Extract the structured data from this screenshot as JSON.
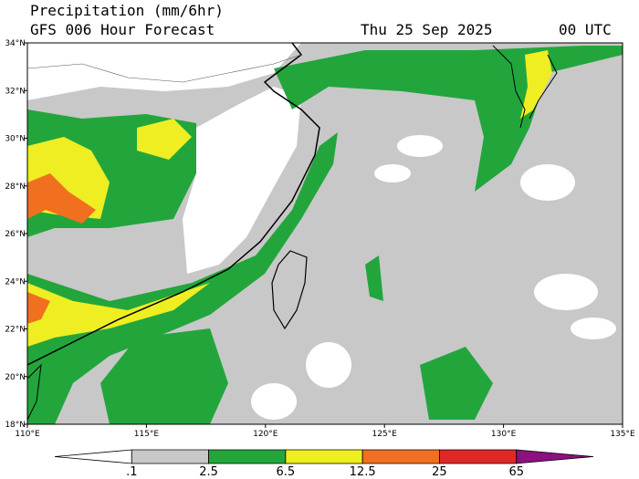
{
  "header": {
    "title": "Precipitation (mm/6hr)",
    "subtitle": "GFS 006 Hour Forecast",
    "date": "Thu 25 Sep 2025",
    "time": "00 UTC"
  },
  "map": {
    "lon_ticks": [
      "110°E",
      "115°E",
      "120°E",
      "125°E",
      "130°E",
      "135°E"
    ],
    "lat_ticks": [
      "18°N",
      "20°N",
      "22°N",
      "24°N",
      "26°N",
      "28°N",
      "30°N",
      "32°N",
      "34°N"
    ]
  },
  "colorbar": {
    "labels": [
      ".1",
      "2.5",
      "6.5",
      "12.5",
      "25",
      "65"
    ],
    "colors": [
      "#ffffff",
      "#c8c8c8",
      "#22a63c",
      "#eeee22",
      "#f07020",
      "#e02828",
      "#8c1080"
    ]
  }
}
